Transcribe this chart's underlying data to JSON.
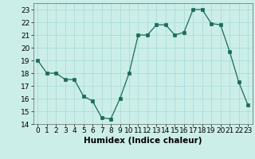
{
  "x": [
    0,
    1,
    2,
    3,
    4,
    5,
    6,
    7,
    8,
    9,
    10,
    11,
    12,
    13,
    14,
    15,
    16,
    17,
    18,
    19,
    20,
    21,
    22,
    23
  ],
  "y": [
    19,
    18,
    18,
    17.5,
    17.5,
    16.2,
    15.8,
    14.5,
    14.4,
    16.0,
    18.0,
    21.0,
    21.0,
    21.8,
    21.8,
    21.0,
    21.2,
    23.0,
    23.0,
    21.9,
    21.8,
    19.7,
    17.3,
    15.5
  ],
  "line_color": "#1a6b5a",
  "marker": "s",
  "marker_size": 2.5,
  "bg_color": "#cceee8",
  "grid_color": "#aadddd",
  "xlabel": "Humidex (Indice chaleur)",
  "ylim": [
    14,
    23.5
  ],
  "xlim": [
    -0.5,
    23.5
  ],
  "yticks": [
    14,
    15,
    16,
    17,
    18,
    19,
    20,
    21,
    22,
    23
  ],
  "xticks": [
    0,
    1,
    2,
    3,
    4,
    5,
    6,
    7,
    8,
    9,
    10,
    11,
    12,
    13,
    14,
    15,
    16,
    17,
    18,
    19,
    20,
    21,
    22,
    23
  ],
  "xlabel_fontsize": 7.5,
  "tick_fontsize": 6.5
}
